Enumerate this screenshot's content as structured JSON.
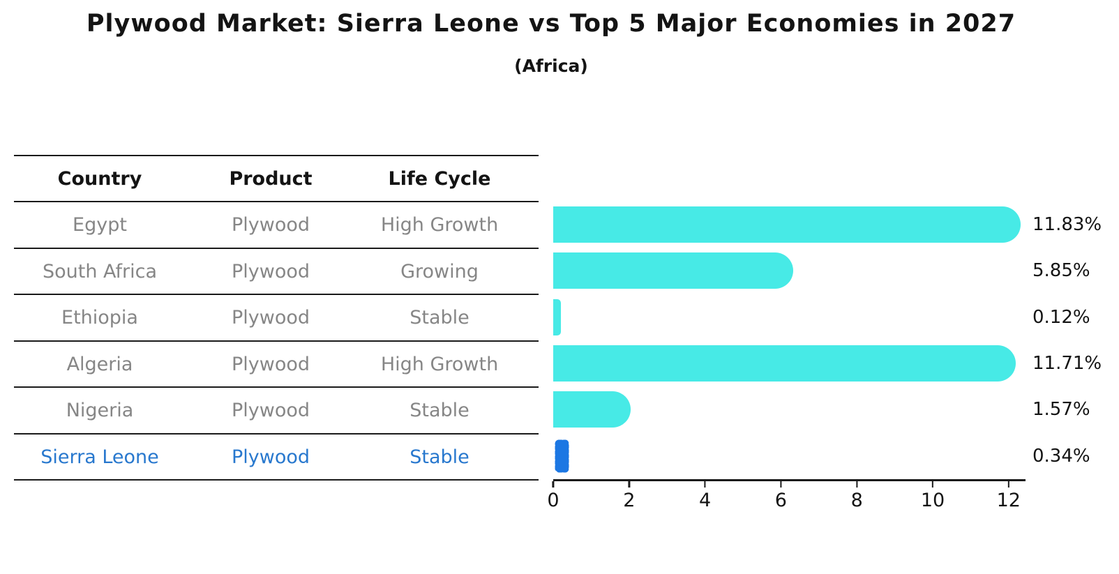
{
  "header": {
    "title": "Plywood Market: Sierra Leone vs Top 5 Major Economies in 2027",
    "subtitle": "(Africa)"
  },
  "colors": {
    "bar": "#47EAE6",
    "highlight": "#1C77E3",
    "highlight_text": "#2878CE",
    "muted": "#868686",
    "ink": "#141414"
  },
  "table": {
    "headers": [
      "Country",
      "Product",
      "Life Cycle"
    ],
    "rows": [
      {
        "country": "Egypt",
        "product": "Plywood",
        "life_cycle": "High Growth"
      },
      {
        "country": "South Africa",
        "product": "Plywood",
        "life_cycle": "Growing"
      },
      {
        "country": "Ethiopia",
        "product": "Plywood",
        "life_cycle": "Stable"
      },
      {
        "country": "Algeria",
        "product": "Plywood",
        "life_cycle": "High Growth"
      },
      {
        "country": "Nigeria",
        "product": "Plywood",
        "life_cycle": "Stable"
      },
      {
        "country": "Sierra Leone",
        "product": "Plywood",
        "life_cycle": "Stable"
      }
    ]
  },
  "chart_data": {
    "type": "bar",
    "orientation": "horizontal",
    "title": "Plywood Market: Sierra Leone vs Top 5 Major Economies in 2027",
    "subtitle": "(Africa)",
    "categories": [
      "Egypt",
      "South Africa",
      "Ethiopia",
      "Algeria",
      "Nigeria",
      "Sierra Leone"
    ],
    "values": [
      11.83,
      5.85,
      0.12,
      11.71,
      1.57,
      0.34
    ],
    "value_labels": [
      "11.83%",
      "5.85%",
      "0.12%",
      "11.71%",
      "1.57%",
      "0.34%"
    ],
    "highlight_index": 5,
    "xlabel": "",
    "ylabel": "",
    "xlim": [
      0,
      12.45
    ],
    "xticks": [
      0,
      2,
      4,
      6,
      8,
      10,
      12
    ],
    "grid": false,
    "legend": false,
    "bar_color": "#47EAE6",
    "highlight_color": "#1C77E3"
  }
}
